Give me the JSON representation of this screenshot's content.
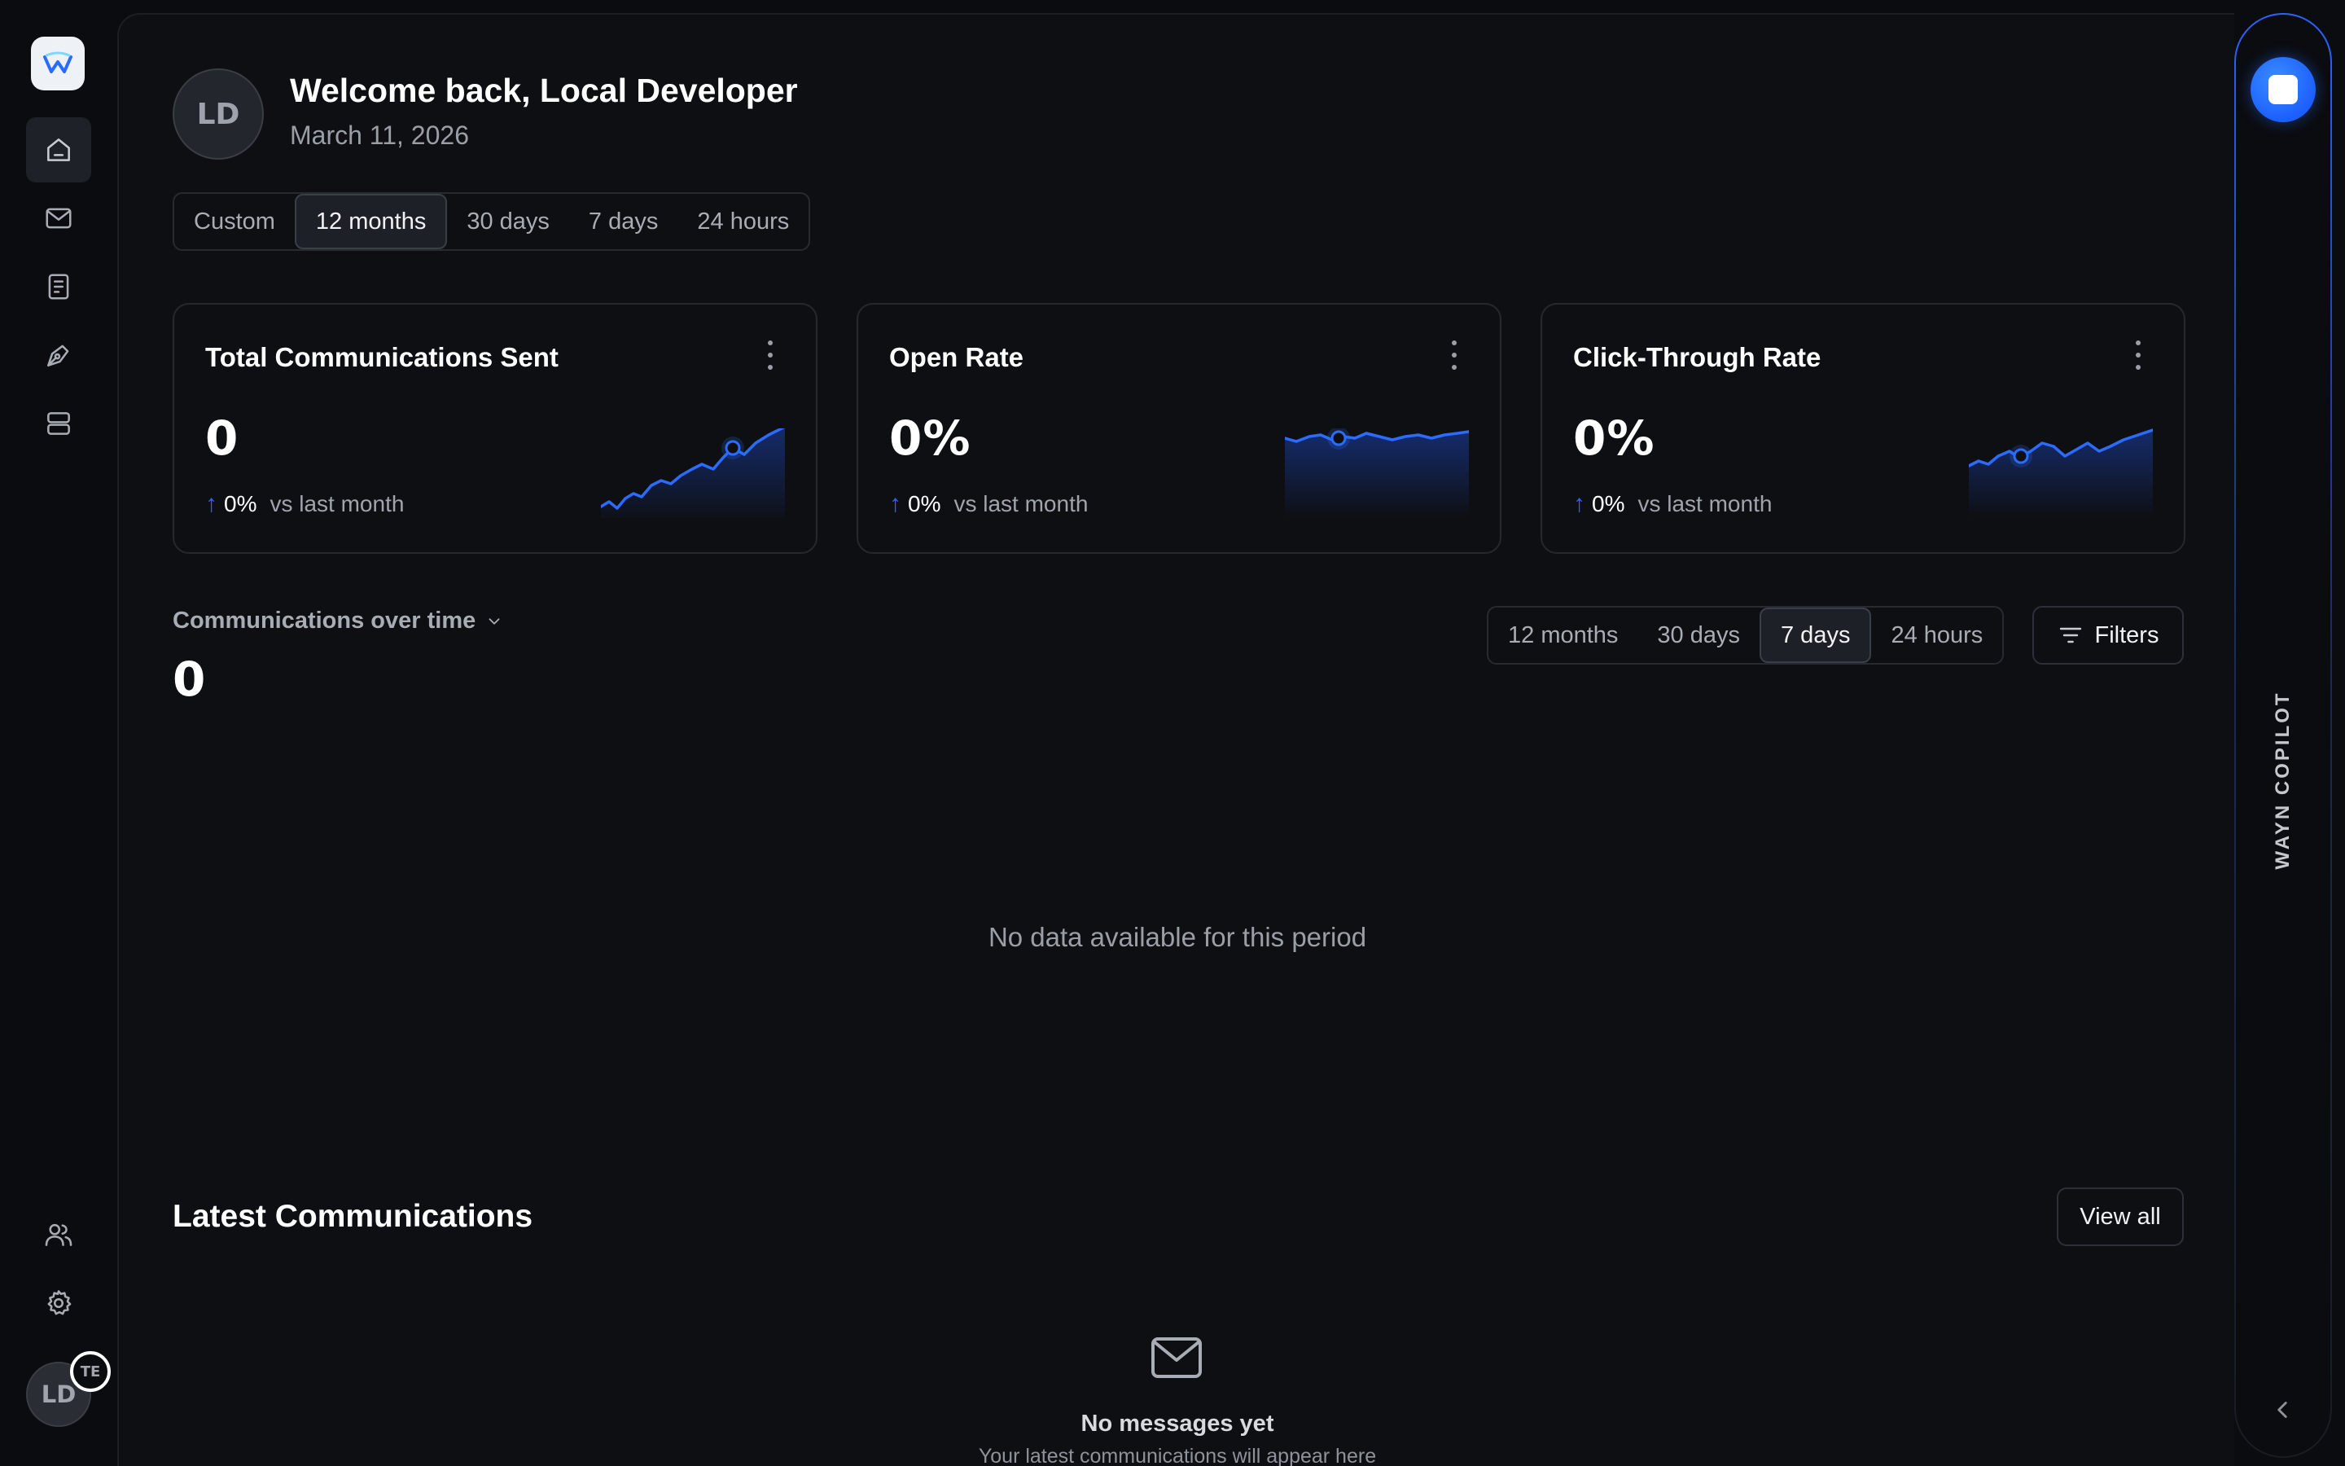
{
  "user": {
    "initials": "LD",
    "welcome": "Welcome back, Local Developer",
    "date": "March 11, 2026",
    "badge_initials": "TE"
  },
  "top_range": {
    "options": [
      "Custom",
      "12 months",
      "30 days",
      "7 days",
      "24 hours"
    ],
    "selected": "12 months"
  },
  "cards": [
    {
      "title": "Total Communications Sent",
      "value": "0",
      "change": "0%",
      "vs": "vs last month"
    },
    {
      "title": "Open Rate",
      "value": "0%",
      "change": "0%",
      "vs": "vs last month"
    },
    {
      "title": "Click-Through Rate",
      "value": "0%",
      "change": "0%",
      "vs": "vs last month"
    }
  ],
  "comms_over_time": {
    "label": "Communications over time",
    "value": "0",
    "range_options": [
      "12 months",
      "30 days",
      "7 days",
      "24 hours"
    ],
    "selected": "7 days",
    "filters_label": "Filters",
    "empty_text": "No data available for this period"
  },
  "latest": {
    "title": "Latest Communications",
    "view_all": "View all",
    "empty_title": "No messages yet",
    "empty_subtitle": "Your latest communications will appear here"
  },
  "copilot": {
    "label": "WAYN COPILOT"
  },
  "nav": {
    "items": [
      "home-icon",
      "mail-icon",
      "document-icon",
      "pen-tool-icon",
      "layers-icon",
      "users-icon",
      "gear-icon"
    ],
    "active": "home-icon"
  },
  "colors": {
    "accent": "#2b6cff",
    "trend_arrow": "#3a5cff",
    "background": "#0e0f13"
  }
}
